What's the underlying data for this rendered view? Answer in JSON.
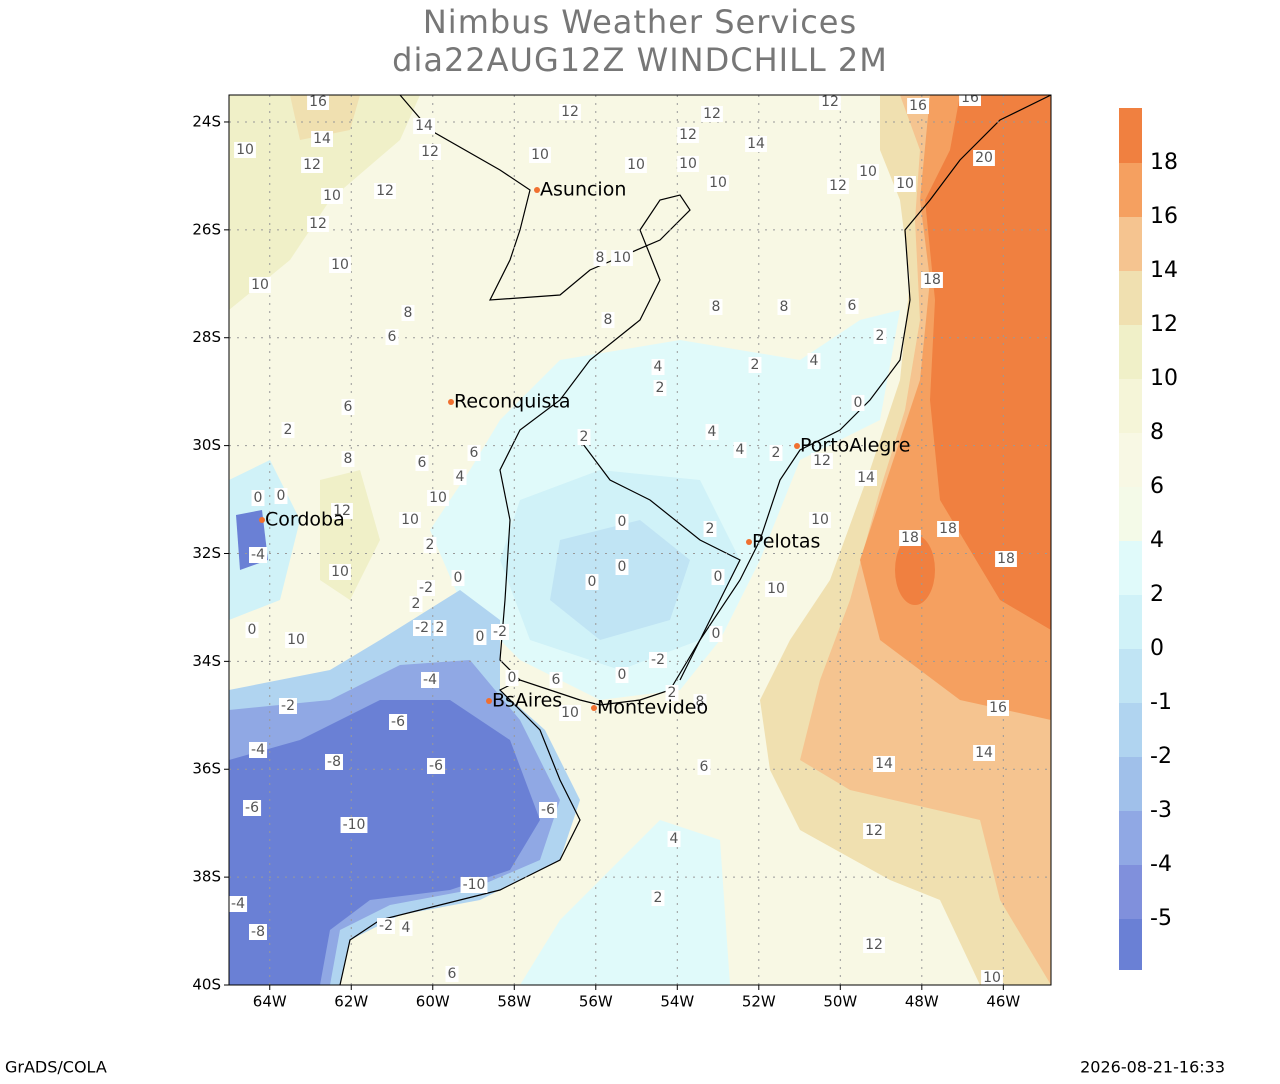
{
  "header": {
    "title": "Nimbus Weather Services",
    "subtitle": "dia22AUG12Z WINDCHILL 2M"
  },
  "map": {
    "xlim": [
      -65,
      -44.83
    ],
    "ylim": [
      -40,
      -23.5
    ],
    "lat_ticks": [
      {
        "value": -24,
        "label": "24S"
      },
      {
        "value": -26,
        "label": "26S"
      },
      {
        "value": -28,
        "label": "28S"
      },
      {
        "value": -30,
        "label": "30S"
      },
      {
        "value": -32,
        "label": "32S"
      },
      {
        "value": -34,
        "label": "34S"
      },
      {
        "value": -36,
        "label": "36S"
      },
      {
        "value": -38,
        "label": "38S"
      },
      {
        "value": -40,
        "label": "40S"
      }
    ],
    "lon_ticks": [
      {
        "value": -64,
        "label": "64W"
      },
      {
        "value": -62,
        "label": "62W"
      },
      {
        "value": -60,
        "label": "60W"
      },
      {
        "value": -58,
        "label": "58W"
      },
      {
        "value": -56,
        "label": "56W"
      },
      {
        "value": -54,
        "label": "54W"
      },
      {
        "value": -52,
        "label": "52W"
      },
      {
        "value": -50,
        "label": "50W"
      },
      {
        "value": -48,
        "label": "48W"
      },
      {
        "value": -46,
        "label": "46W"
      }
    ],
    "cities": [
      "Asuncion",
      "Reconquista",
      "Cordoba",
      "PortoAlegre",
      "Pelotas",
      "BsAires",
      "Montevideo"
    ],
    "contour_labels": [
      16,
      12,
      12,
      12,
      16,
      16,
      14,
      14,
      12,
      12,
      14,
      10,
      12,
      10,
      10,
      10,
      12,
      10,
      20,
      10,
      12,
      10,
      10,
      12,
      8,
      10,
      10,
      10,
      18,
      8,
      8,
      6,
      8,
      8,
      6,
      2,
      4,
      2,
      2,
      4,
      0,
      2,
      4,
      4,
      2,
      12,
      6,
      2,
      8,
      6,
      4,
      6,
      10,
      12,
      10,
      0,
      0,
      0,
      2,
      18,
      18,
      18,
      14,
      10,
      2,
      -4,
      10,
      0,
      0,
      0,
      10,
      0,
      -2,
      2,
      0,
      2,
      -2,
      -2,
      0,
      10,
      0,
      -2,
      0,
      -4,
      -2,
      0,
      6,
      2,
      8,
      16,
      10,
      -6,
      -4,
      -8,
      -6,
      6,
      14,
      14,
      -6,
      -6,
      -10,
      12,
      4,
      -10,
      2,
      -4,
      -8,
      -2,
      4,
      12,
      6,
      10
    ]
  },
  "colorbar": {
    "levels": [
      18,
      16,
      14,
      12,
      10,
      8,
      6,
      4,
      2,
      0,
      -1,
      -2,
      -3,
      -4,
      -5
    ],
    "colors": [
      "#f08040",
      "#f5a060",
      "#f5c490",
      "#f0e0b0",
      "#f0f0c8",
      "#f5f5d8",
      "#f8f8e4",
      "#f4fae8",
      "#e0fafa",
      "#d0f2f8",
      "#c0e4f4",
      "#b0d4f0",
      "#a0c0ea",
      "#90a8e4",
      "#8090dc",
      "#6a80d5"
    ]
  },
  "footer": {
    "left": "GrADS/COLA",
    "right": "2026-08-21-16:33"
  }
}
